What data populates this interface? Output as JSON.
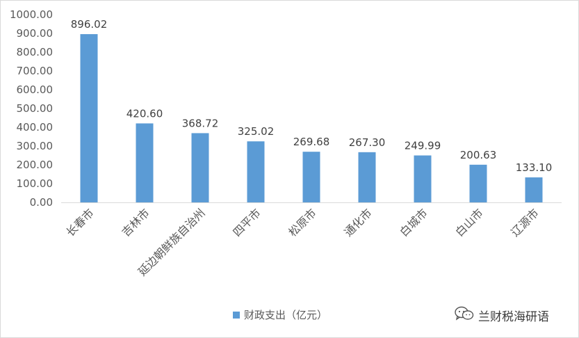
{
  "chart_data": {
    "type": "bar",
    "categories": [
      "长春市",
      "吉林市",
      "延边朝鲜族自治州",
      "四平市",
      "松原市",
      "通化市",
      "白城市",
      "白山市",
      "辽源市"
    ],
    "series": [
      {
        "name": "财政支出（亿元）",
        "values": [
          896.02,
          420.6,
          368.72,
          325.02,
          269.68,
          267.3,
          249.99,
          200.63,
          133.1
        ]
      }
    ],
    "value_labels": [
      "896.02",
      "420.60",
      "368.72",
      "325.02",
      "269.68",
      "267.30",
      "249.99",
      "200.63",
      "133.10"
    ],
    "yticks": [
      "0.00",
      "100.00",
      "200.00",
      "300.00",
      "400.00",
      "500.00",
      "600.00",
      "700.00",
      "800.00",
      "900.00",
      "1000.00"
    ],
    "ylim": [
      0,
      1000
    ],
    "grid": false,
    "legend_position": "bottom-center",
    "bar_color": "#5b9bd5",
    "title": "",
    "xlabel": "",
    "ylabel": ""
  },
  "watermark": {
    "text": "兰财税海研语",
    "icon": "wechat-icon"
  }
}
